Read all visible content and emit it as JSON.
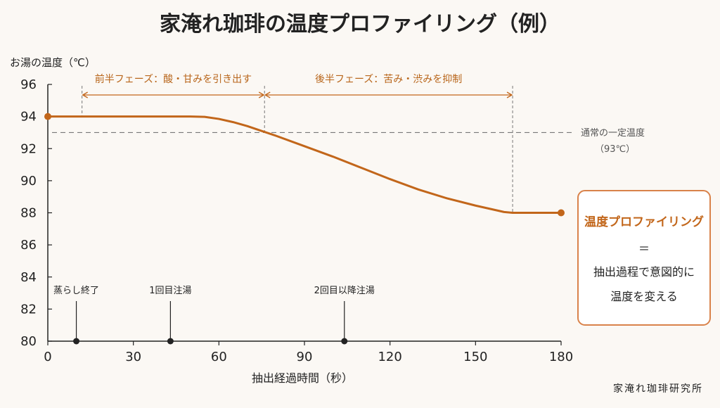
{
  "chart_data": {
    "type": "line",
    "title": "家淹れ珈琲の温度プロファイリング（例）",
    "ylabel": "お湯の温度（℃）",
    "xlabel": "抽出経過時間（秒）",
    "ylim": [
      80,
      96
    ],
    "xlim": [
      0,
      180
    ],
    "yticks": [
      80,
      82,
      84,
      86,
      88,
      90,
      92,
      94,
      96
    ],
    "xticks": [
      0,
      30,
      60,
      90,
      120,
      150,
      180
    ],
    "series": [
      {
        "x": [
          0,
          10,
          20,
          30,
          40,
          50,
          55,
          60,
          65,
          70,
          75,
          80,
          90,
          100,
          110,
          120,
          130,
          140,
          150,
          160,
          163,
          170,
          180
        ],
        "y": [
          94,
          94,
          94,
          94,
          94,
          94,
          93.98,
          93.85,
          93.65,
          93.4,
          93.1,
          92.8,
          92.15,
          91.5,
          90.8,
          90.1,
          89.45,
          88.9,
          88.45,
          88.05,
          88,
          88,
          88
        ],
        "color": "#c2661a"
      }
    ],
    "reference_line": {
      "y": 93,
      "label_line1": "通常の一定温度",
      "label_line2": "（93℃）"
    },
    "phases": [
      {
        "label": "前半フェーズ：酸・甘みを引き出す",
        "x_start": 12,
        "x_end": 76
      },
      {
        "label": "後半フェーズ：苦み・渋みを抑制",
        "x_start": 76,
        "x_end": 163
      }
    ],
    "events": [
      {
        "x": 10,
        "label": "蒸らし終了"
      },
      {
        "x": 43,
        "label": "1回目注湯"
      },
      {
        "x": 104,
        "label": "2回目以降注湯"
      }
    ],
    "grid": false,
    "legend": "none",
    "colors": {
      "line": "#c2661a",
      "reference": "#777777",
      "box_border": "#d9824a",
      "accent": "#c2661a"
    }
  },
  "callout": {
    "highlight": "温度プロファイリング",
    "equals": "＝",
    "line1": "抽出過程で意図的に",
    "line2": "温度を変える"
  },
  "credit": "家淹れ珈琲研究所"
}
